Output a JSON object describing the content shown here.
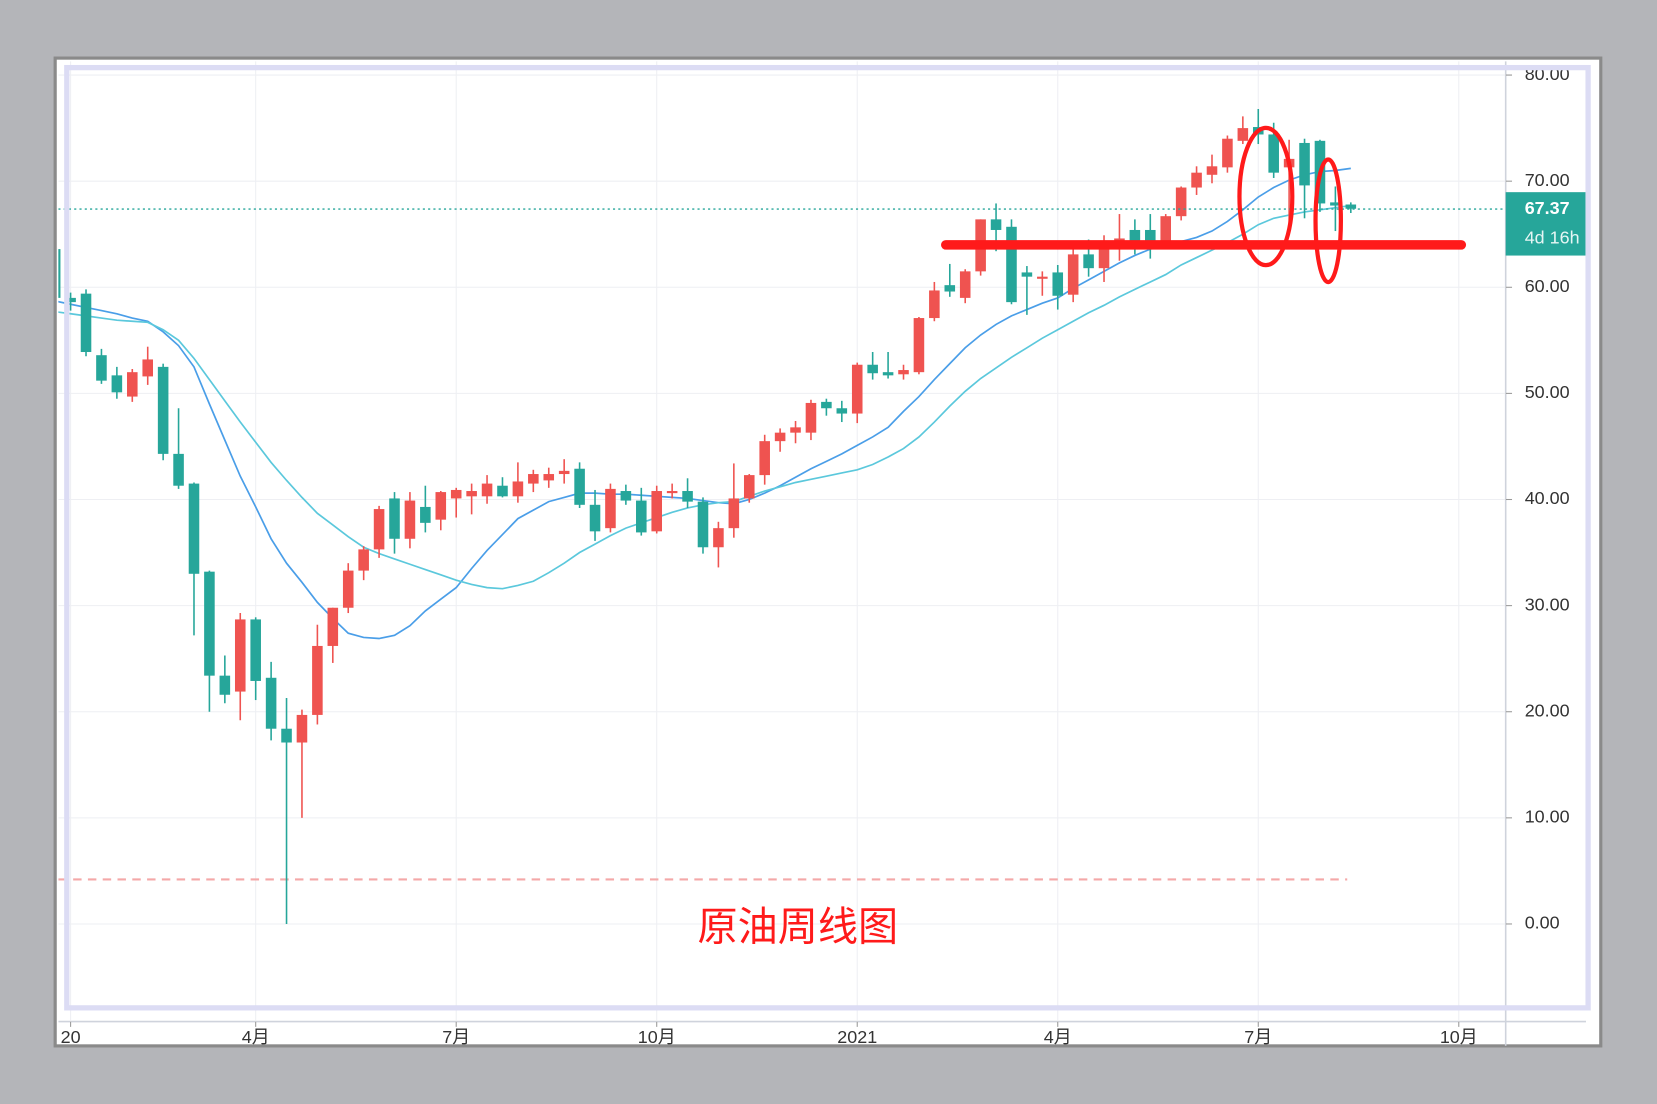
{
  "chart_data": {
    "type": "candlestick",
    "annotation": "原油周线图",
    "categories": [
      null,
      "20",
      null,
      null,
      null,
      null,
      null,
      null,
      null,
      null,
      null,
      null,
      null,
      "4月",
      null,
      null,
      null,
      null,
      null,
      null,
      null,
      null,
      null,
      null,
      null,
      null,
      "7月",
      null,
      null,
      null,
      null,
      null,
      null,
      null,
      null,
      null,
      null,
      null,
      null,
      "10月",
      null,
      null,
      null,
      null,
      null,
      null,
      null,
      null,
      null,
      null,
      null,
      null,
      "2021",
      null,
      null,
      null,
      null,
      null,
      null,
      null,
      null,
      null,
      null,
      null,
      null,
      "4月",
      null,
      null,
      null,
      null,
      null,
      null,
      null,
      null,
      null,
      null,
      null,
      null,
      "7月",
      null,
      null,
      null,
      null,
      null,
      null,
      null,
      null,
      null,
      null,
      null,
      null,
      "10月"
    ],
    "open": [
      63.6,
      59.0,
      59.4,
      53.6,
      51.7,
      49.7,
      51.6,
      52.5,
      44.3,
      41.5,
      33.2,
      23.4,
      21.9,
      28.7,
      23.2,
      18.4,
      17.1,
      19.7,
      26.2,
      29.8,
      33.3,
      35.3,
      40.1,
      36.3,
      39.3,
      38.1,
      40.1,
      40.3,
      40.3,
      41.3,
      40.3,
      41.5,
      41.8,
      42.4,
      42.9,
      39.5,
      37.3,
      40.8,
      39.9,
      37.0,
      40.6,
      40.8,
      39.8,
      35.5,
      37.3,
      40.1,
      42.3,
      45.5,
      46.3,
      46.3,
      49.2,
      48.6,
      48.1,
      52.7,
      52.0,
      51.8,
      52.0,
      57.1,
      60.2,
      59.0,
      61.5,
      66.4,
      65.7,
      61.4,
      60.8,
      61.4,
      59.3,
      63.1,
      61.8,
      64.0,
      65.4,
      65.4,
      64.2,
      66.7,
      69.4,
      70.6,
      71.3,
      73.8,
      75.1,
      74.4,
      71.3,
      73.6,
      73.8,
      68.0,
      67.8,
      null,
      null,
      null,
      null,
      null,
      null,
      null
    ],
    "high": [
      63.6,
      59.5,
      59.8,
      54.2,
      52.5,
      52.3,
      54.4,
      52.8,
      48.6,
      41.6,
      33.3,
      25.3,
      29.3,
      28.9,
      24.7,
      21.3,
      20.2,
      28.2,
      29.8,
      34.0,
      35.6,
      39.4,
      40.7,
      40.7,
      41.3,
      40.8,
      41.1,
      41.5,
      42.3,
      42.1,
      43.5,
      42.8,
      43.0,
      43.8,
      43.5,
      40.9,
      41.5,
      41.4,
      41.1,
      41.3,
      41.5,
      42.0,
      40.2,
      37.9,
      43.4,
      42.4,
      46.1,
      46.7,
      47.4,
      49.4,
      49.5,
      49.3,
      52.9,
      53.9,
      53.9,
      52.7,
      57.2,
      60.5,
      62.2,
      61.7,
      66.4,
      67.9,
      66.4,
      62.0,
      61.5,
      62.1,
      63.8,
      64.5,
      64.9,
      66.9,
      66.4,
      66.9,
      66.9,
      69.5,
      71.4,
      72.5,
      74.3,
      76.1,
      76.8,
      75.5,
      73.9,
      74.0,
      73.9,
      69.5,
      68.0,
      null,
      null,
      null,
      null,
      null,
      null,
      null
    ],
    "low": [
      58.5,
      57.8,
      53.5,
      50.9,
      49.5,
      49.2,
      50.8,
      43.7,
      41.0,
      27.2,
      20.0,
      20.8,
      19.2,
      21.1,
      17.3,
      0.0,
      10.0,
      18.8,
      24.6,
      29.3,
      32.4,
      34.5,
      34.9,
      35.4,
      36.9,
      37.1,
      38.3,
      38.6,
      39.6,
      40.2,
      39.7,
      40.7,
      41.1,
      41.5,
      39.2,
      36.1,
      36.9,
      39.5,
      36.6,
      36.8,
      40.1,
      39.2,
      34.9,
      33.6,
      36.4,
      39.7,
      41.4,
      44.5,
      45.3,
      45.6,
      47.9,
      47.3,
      47.2,
      51.3,
      51.4,
      51.3,
      51.8,
      56.8,
      59.1,
      58.5,
      61.1,
      63.4,
      58.4,
      57.4,
      59.2,
      57.9,
      58.6,
      61.0,
      60.5,
      62.5,
      63.1,
      62.7,
      63.6,
      66.3,
      68.7,
      69.8,
      70.8,
      73.5,
      73.5,
      70.3,
      65.4,
      66.5,
      67.1,
      65.3,
      67.0,
      null,
      null,
      null,
      null,
      null,
      null,
      null
    ],
    "close": [
      59.0,
      58.6,
      53.9,
      51.2,
      50.1,
      52.0,
      53.2,
      44.3,
      41.3,
      33.0,
      23.4,
      21.6,
      28.7,
      22.9,
      18.4,
      17.1,
      19.7,
      26.2,
      29.8,
      33.3,
      35.3,
      39.1,
      36.3,
      39.9,
      37.8,
      40.7,
      40.9,
      40.8,
      41.5,
      40.3,
      41.7,
      42.4,
      42.4,
      42.7,
      39.5,
      37.0,
      41.0,
      39.9,
      36.9,
      40.8,
      40.8,
      39.8,
      35.5,
      37.3,
      40.1,
      42.3,
      45.5,
      46.3,
      46.8,
      49.1,
      48.6,
      48.1,
      52.7,
      51.9,
      51.7,
      52.2,
      57.1,
      59.7,
      59.6,
      61.5,
      66.4,
      65.4,
      58.6,
      61.0,
      61.0,
      59.2,
      63.1,
      61.8,
      64.1,
      64.6,
      64.0,
      64.4,
      66.7,
      69.4,
      70.8,
      71.4,
      74.0,
      75.0,
      74.4,
      70.8,
      72.1,
      69.6,
      67.9,
      67.7,
      67.4,
      null,
      null,
      null,
      null,
      null,
      null,
      null
    ],
    "up_color": "#ef5350",
    "down_color": "#26a69a",
    "lines": [
      {
        "color": "#4a9ee8",
        "values": [
          58.7,
          58.4,
          58.1,
          57.8,
          57.5,
          57.1,
          56.8,
          55.8,
          54.5,
          52.5,
          49.0,
          45.6,
          42.2,
          39.3,
          36.3,
          34.0,
          32.2,
          30.3,
          28.8,
          27.4,
          27.0,
          26.9,
          27.2,
          28.1,
          29.5,
          30.6,
          31.7,
          33.5,
          35.2,
          36.7,
          38.2,
          39.0,
          39.8,
          40.2,
          40.6,
          40.6,
          40.5,
          40.5,
          40.4,
          40.3,
          40.2,
          40.1,
          39.9,
          39.7,
          39.6,
          40.0,
          40.6,
          41.3,
          42.1,
          42.9,
          43.6,
          44.3,
          45.1,
          45.9,
          46.8,
          48.3,
          49.7,
          51.3,
          52.8,
          54.3,
          55.5,
          56.5,
          57.3,
          57.9,
          58.5,
          59.0,
          59.9,
          60.7,
          61.5,
          62.3,
          63.0,
          63.6,
          64.0,
          64.3,
          64.7,
          65.3,
          66.2,
          67.3,
          68.5,
          69.4,
          70.1,
          70.6,
          70.9,
          71.0,
          71.2,
          null,
          null,
          null,
          null,
          null,
          null,
          null
        ]
      },
      {
        "color": "#5bc8dc",
        "values": [
          57.7,
          57.5,
          57.3,
          57.1,
          56.9,
          56.8,
          56.7,
          56.0,
          55.0,
          53.3,
          51.3,
          49.3,
          47.3,
          45.4,
          43.5,
          41.8,
          40.2,
          38.7,
          37.6,
          36.5,
          35.5,
          34.9,
          34.4,
          33.9,
          33.4,
          32.9,
          32.4,
          32.0,
          31.7,
          31.6,
          31.9,
          32.3,
          33.1,
          34.0,
          35.0,
          35.8,
          36.6,
          37.3,
          37.8,
          38.3,
          38.8,
          39.2,
          39.5,
          39.7,
          39.8,
          40.3,
          40.8,
          41.2,
          41.6,
          41.9,
          42.2,
          42.5,
          42.8,
          43.3,
          44.0,
          44.8,
          45.9,
          47.3,
          48.8,
          50.2,
          51.4,
          52.4,
          53.4,
          54.3,
          55.2,
          56.0,
          56.8,
          57.6,
          58.3,
          59.1,
          59.8,
          60.5,
          61.2,
          62.1,
          62.8,
          63.5,
          64.2,
          65.0,
          65.9,
          66.5,
          66.8,
          67.1,
          67.3,
          67.5,
          67.7,
          null,
          null,
          null,
          null,
          null,
          null,
          null
        ]
      }
    ],
    "ylim": [
      -9.2,
      80.8
    ],
    "yticks": [
      {
        "value": 0,
        "label": "0.00"
      },
      {
        "value": 10,
        "label": "10.00"
      },
      {
        "value": 20,
        "label": "20.00"
      },
      {
        "value": 30,
        "label": "30.00"
      },
      {
        "value": 40,
        "label": "40.00"
      },
      {
        "value": 50,
        "label": "50.00"
      },
      {
        "value": 60,
        "label": "60.00"
      },
      {
        "value": 70,
        "label": "70.00"
      },
      {
        "value": 80,
        "label": "80.00"
      }
    ],
    "grid": true,
    "current_price": 67.37,
    "countdown": "4d 16h",
    "support_level": 64,
    "dashed_level": 4.2
  }
}
